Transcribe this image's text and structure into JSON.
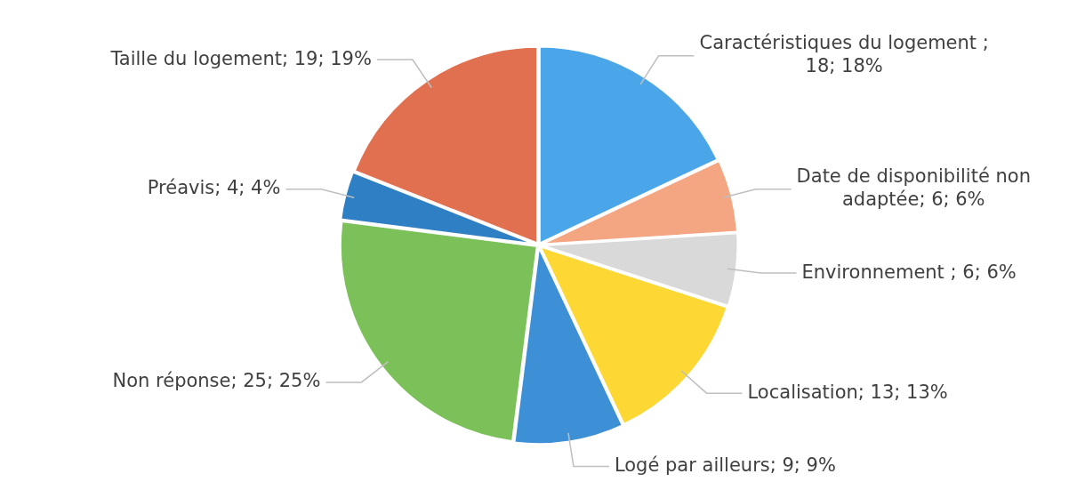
{
  "chart_data": {
    "type": "pie",
    "categories": [
      "Caractéristiques du logement ; 18; 18%",
      "Date de disponibilité non adaptée; 6; 6%",
      "Environnement ; 6; 6%",
      "Localisation; 13; 13%",
      "Logé par ailleurs; 9; 9%",
      "Non réponse; 25; 25%",
      "Préavis; 4; 4%",
      "Taille du logement; 19; 19%"
    ],
    "values": [
      18,
      6,
      6,
      13,
      9,
      25,
      4,
      19
    ],
    "colors": [
      "#4aa6e8",
      "#f4a582",
      "#d9d9d9",
      "#fdd835",
      "#3d8fd6",
      "#7cc05a",
      "#2f7fc4",
      "#e0704f"
    ],
    "legend": false
  }
}
